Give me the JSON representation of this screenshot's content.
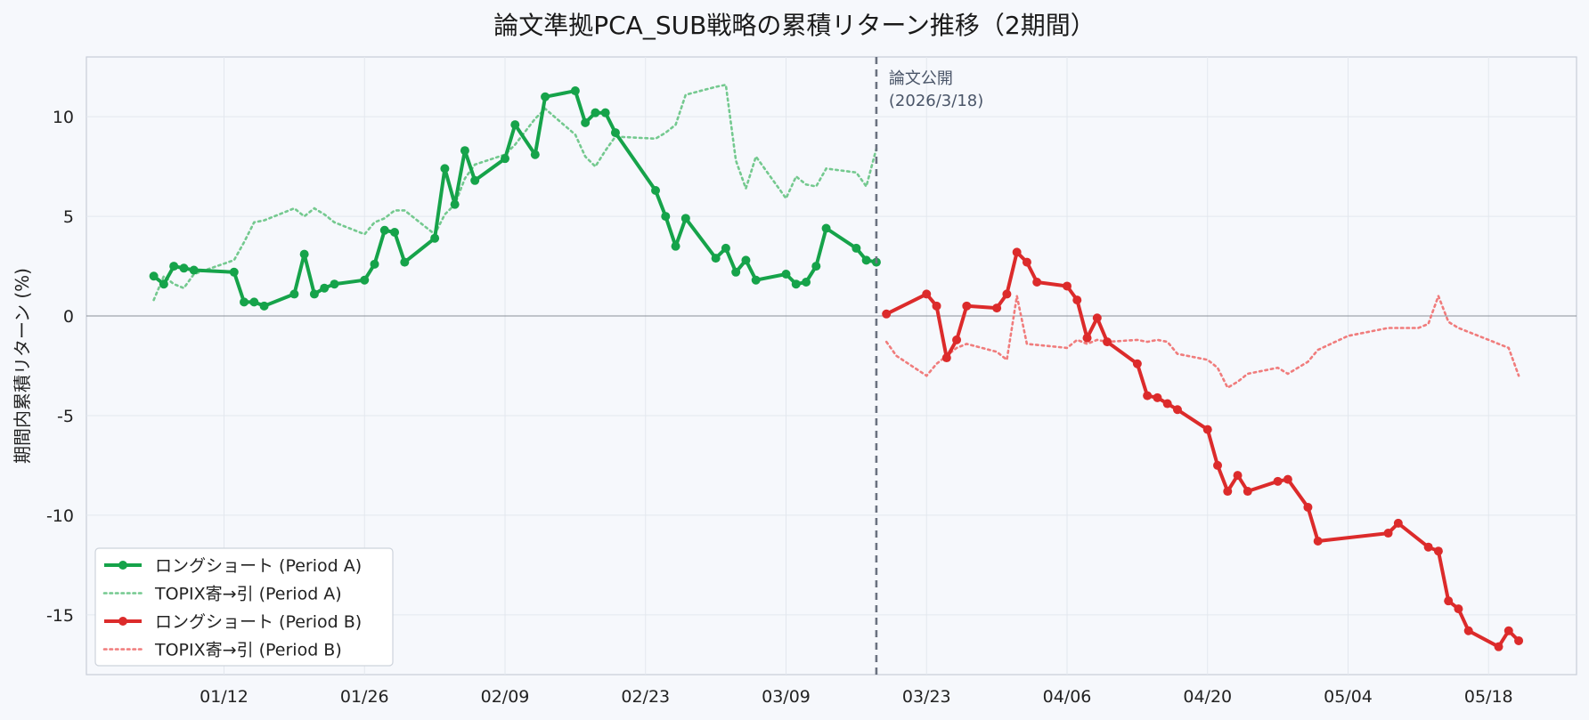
{
  "chart_data": {
    "type": "line",
    "title": "論文準拠PCA_SUB戦略の累積リターン推移（2期間）",
    "xlabel": "",
    "ylabel": "期間内累積リターン (%)",
    "x_ticks": [
      "01/12",
      "01/26",
      "02/09",
      "02/23",
      "03/09",
      "03/23",
      "04/06",
      "04/20",
      "05/04",
      "05/18"
    ],
    "y_ticks": [
      "10",
      "5",
      "0",
      "-5",
      "-10",
      "-15"
    ],
    "ylim": [
      -18,
      13
    ],
    "grid": true,
    "legend_position": "lower-left",
    "annotation": {
      "lines": [
        "論文公開",
        "(2026/3/18)"
      ],
      "date": "2026-03-18"
    },
    "series": [
      {
        "name": "ロングショート (Period A)",
        "color": "#16a34a",
        "style": "solid-markers",
        "x": [
          "2026-01-05",
          "2026-01-06",
          "2026-01-07",
          "2026-01-08",
          "2026-01-09",
          "2026-01-13",
          "2026-01-14",
          "2026-01-15",
          "2026-01-16",
          "2026-01-19",
          "2026-01-20",
          "2026-01-21",
          "2026-01-22",
          "2026-01-23",
          "2026-01-26",
          "2026-01-27",
          "2026-01-28",
          "2026-01-29",
          "2026-01-30",
          "2026-02-02",
          "2026-02-03",
          "2026-02-04",
          "2026-02-05",
          "2026-02-06",
          "2026-02-09",
          "2026-02-10",
          "2026-02-12",
          "2026-02-13",
          "2026-02-16",
          "2026-02-17",
          "2026-02-18",
          "2026-02-19",
          "2026-02-20",
          "2026-02-24",
          "2026-02-25",
          "2026-02-26",
          "2026-02-27",
          "2026-03-02",
          "2026-03-03",
          "2026-03-04",
          "2026-03-05",
          "2026-03-06",
          "2026-03-09",
          "2026-03-10",
          "2026-03-11",
          "2026-03-12",
          "2026-03-13",
          "2026-03-16",
          "2026-03-17",
          "2026-03-18"
        ],
        "y": [
          2.0,
          1.6,
          2.5,
          2.4,
          2.3,
          2.2,
          0.7,
          0.7,
          0.5,
          1.1,
          3.1,
          1.1,
          1.4,
          1.6,
          1.8,
          2.6,
          4.3,
          4.2,
          2.7,
          3.9,
          7.4,
          5.6,
          8.3,
          6.8,
          7.9,
          9.6,
          8.1,
          11.0,
          11.3,
          9.7,
          10.2,
          10.2,
          9.2,
          6.3,
          5.0,
          3.5,
          4.9,
          2.9,
          3.4,
          2.2,
          2.8,
          1.8,
          2.1,
          1.6,
          1.7,
          2.5,
          4.4,
          3.4,
          2.8,
          2.7
        ]
      },
      {
        "name": "TOPIX寄→引 (Period A)",
        "color": "#74c98f",
        "style": "dotted",
        "x": [
          "2026-01-05",
          "2026-01-06",
          "2026-01-07",
          "2026-01-08",
          "2026-01-09",
          "2026-01-13",
          "2026-01-14",
          "2026-01-15",
          "2026-01-16",
          "2026-01-19",
          "2026-01-20",
          "2026-01-21",
          "2026-01-22",
          "2026-01-23",
          "2026-01-26",
          "2026-01-27",
          "2026-01-28",
          "2026-01-29",
          "2026-01-30",
          "2026-02-02",
          "2026-02-03",
          "2026-02-04",
          "2026-02-05",
          "2026-02-06",
          "2026-02-09",
          "2026-02-10",
          "2026-02-12",
          "2026-02-13",
          "2026-02-16",
          "2026-02-17",
          "2026-02-18",
          "2026-02-19",
          "2026-02-20",
          "2026-02-24",
          "2026-02-25",
          "2026-02-26",
          "2026-02-27",
          "2026-03-02",
          "2026-03-03",
          "2026-03-04",
          "2026-03-05",
          "2026-03-06",
          "2026-03-09",
          "2026-03-10",
          "2026-03-11",
          "2026-03-12",
          "2026-03-13",
          "2026-03-16",
          "2026-03-17",
          "2026-03-18"
        ],
        "y": [
          0.8,
          2.0,
          1.6,
          1.4,
          2.1,
          2.8,
          3.7,
          4.7,
          4.8,
          5.4,
          5.0,
          5.4,
          5.1,
          4.7,
          4.1,
          4.7,
          4.9,
          5.3,
          5.3,
          4.1,
          5.1,
          5.6,
          6.9,
          7.6,
          8.1,
          8.6,
          9.9,
          10.4,
          9.1,
          8.0,
          7.5,
          8.3,
          9.0,
          8.9,
          9.2,
          9.6,
          11.1,
          11.5,
          11.6,
          7.8,
          6.4,
          8.0,
          5.9,
          7.0,
          6.6,
          6.5,
          7.4,
          7.2,
          6.5,
          8.4
        ]
      },
      {
        "name": "ロングショート (Period B)",
        "color": "#dc2b2b",
        "style": "solid-markers",
        "x": [
          "2026-03-19",
          "2026-03-23",
          "2026-03-24",
          "2026-03-25",
          "2026-03-26",
          "2026-03-27",
          "2026-03-30",
          "2026-03-31",
          "2026-04-01",
          "2026-04-02",
          "2026-04-03",
          "2026-04-06",
          "2026-04-07",
          "2026-04-08",
          "2026-04-09",
          "2026-04-10",
          "2026-04-13",
          "2026-04-14",
          "2026-04-15",
          "2026-04-16",
          "2026-04-17",
          "2026-04-20",
          "2026-04-21",
          "2026-04-22",
          "2026-04-23",
          "2026-04-24",
          "2026-04-27",
          "2026-04-28",
          "2026-04-30",
          "2026-05-01",
          "2026-05-08",
          "2026-05-09",
          "2026-05-12",
          "2026-05-13",
          "2026-05-14",
          "2026-05-15",
          "2026-05-16",
          "2026-05-19",
          "2026-05-20",
          "2026-05-21"
        ],
        "y": [
          0.1,
          1.1,
          0.5,
          -2.1,
          -1.2,
          0.5,
          0.4,
          1.1,
          3.2,
          2.7,
          1.7,
          1.5,
          0.8,
          -1.1,
          -0.1,
          -1.3,
          -2.4,
          -4.0,
          -4.1,
          -4.4,
          -4.7,
          -5.7,
          -7.5,
          -8.8,
          -8.0,
          -8.8,
          -8.3,
          -8.2,
          -9.6,
          -11.3,
          -10.9,
          -10.4,
          -11.6,
          -11.8,
          -14.3,
          -14.7,
          -15.8,
          -16.6,
          -15.8,
          -16.3
        ]
      },
      {
        "name": "TOPIX寄→引 (Period B)",
        "color": "#f07c7c",
        "style": "dotted",
        "x": [
          "2026-03-19",
          "2026-03-20",
          "2026-03-23",
          "2026-03-24",
          "2026-03-25",
          "2026-03-26",
          "2026-03-27",
          "2026-03-30",
          "2026-03-31",
          "2026-04-01",
          "2026-04-02",
          "2026-04-06",
          "2026-04-07",
          "2026-04-08",
          "2026-04-09",
          "2026-04-10",
          "2026-04-13",
          "2026-04-14",
          "2026-04-15",
          "2026-04-16",
          "2026-04-17",
          "2026-04-20",
          "2026-04-21",
          "2026-04-22",
          "2026-04-23",
          "2026-04-24",
          "2026-04-27",
          "2026-04-28",
          "2026-04-30",
          "2026-05-01",
          "2026-05-04",
          "2026-05-08",
          "2026-05-11",
          "2026-05-12",
          "2026-05-13",
          "2026-05-14",
          "2026-05-15",
          "2026-05-18",
          "2026-05-19",
          "2026-05-20",
          "2026-05-21"
        ],
        "y": [
          -1.3,
          -2.0,
          -3.0,
          -2.4,
          -2.0,
          -1.6,
          -1.4,
          -1.8,
          -2.2,
          1.0,
          -1.4,
          -1.6,
          -1.2,
          -1.4,
          -1.2,
          -1.3,
          -1.2,
          -1.3,
          -1.2,
          -1.3,
          -1.9,
          -2.2,
          -2.6,
          -3.6,
          -3.3,
          -2.9,
          -2.6,
          -2.9,
          -2.3,
          -1.7,
          -1.0,
          -0.6,
          -0.6,
          -0.4,
          1.0,
          -0.3,
          -0.6,
          -1.2,
          -1.4,
          -1.6,
          -3.0
        ]
      }
    ]
  }
}
